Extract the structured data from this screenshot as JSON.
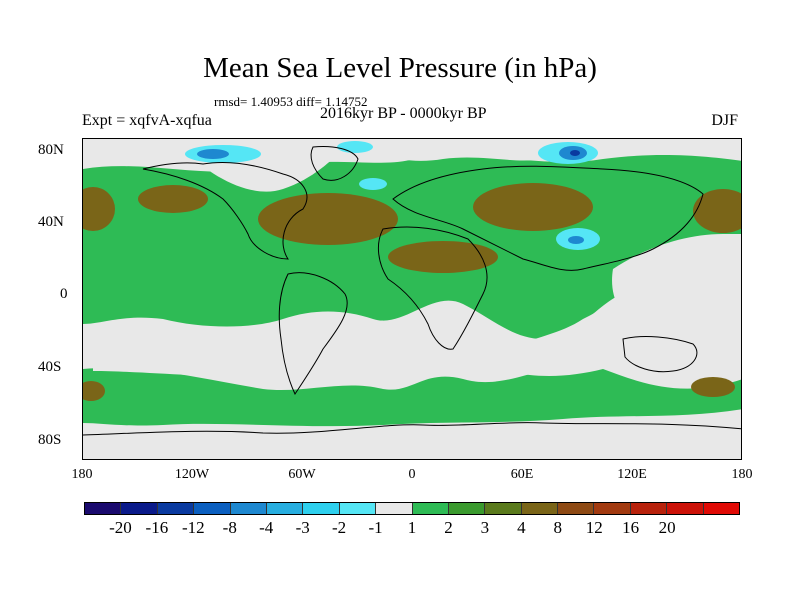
{
  "title": "Mean Sea Level Pressure (in hPa)",
  "stats": "rmsd= 1.40953 diff= 1.14752",
  "expt": "Expt = xqfvA-xqfua",
  "period": "2016kyr BP - 0000kyr BP",
  "season": "DJF",
  "lat_labels": [
    "80N",
    "40N",
    "0",
    "40S",
    "80S"
  ],
  "lon_labels": [
    "180",
    "120W",
    "60W",
    "0",
    "60E",
    "120E",
    "180"
  ],
  "colorbar": {
    "colors": [
      "#1a0a6e",
      "#0a1a8a",
      "#0a3aa0",
      "#0b5fc0",
      "#1e88d0",
      "#27aee0",
      "#2ed0ee",
      "#55e6f5",
      "#e8e8e8",
      "#2ebb55",
      "#3a9a2e",
      "#5a7a1c",
      "#7a6518",
      "#8e4a14",
      "#a23a10",
      "#b8220c",
      "#cc1208",
      "#e00a05"
    ],
    "labels": [
      "-20",
      "-16",
      "-12",
      "-8",
      "-4",
      "-3",
      "-2",
      "-1",
      "1",
      "2",
      "3",
      "4",
      "8",
      "12",
      "16",
      "20"
    ]
  },
  "map_colors": {
    "gray": "#e8e8e8",
    "green": "#2ebb55",
    "brown": "#7a6518",
    "olive": "#5a7a1c",
    "cyan": "#55e6f5",
    "blue": "#1e88d0",
    "darkblue": "#0a3aa0"
  }
}
